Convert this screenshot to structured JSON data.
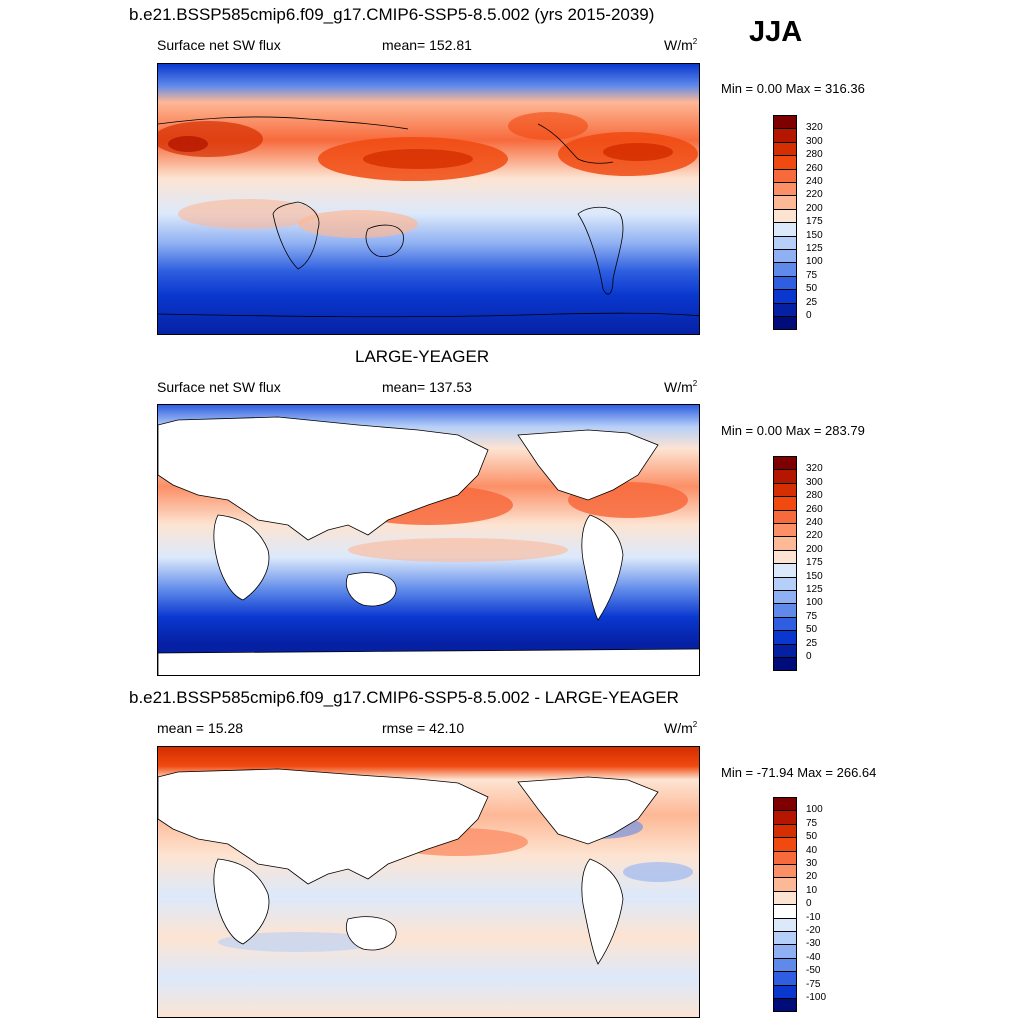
{
  "season": "JJA",
  "panels": [
    {
      "id": "top",
      "title": "b.e21.BSSP585cmip6.f09_g17.CMIP6-SSP5-8.5.002 (yrs 2015-2039)",
      "left_label": "Surface net SW flux",
      "center_label": "mean= 152.81",
      "units_base": "W/m",
      "units_sup": "2",
      "minmax": "Min =   0.00 Max = 316.36",
      "colorbar": {
        "labels": [
          "320",
          "300",
          "280",
          "260",
          "240",
          "220",
          "200",
          "175",
          "150",
          "125",
          "100",
          "75",
          "50",
          "25",
          "0"
        ],
        "colors": [
          "#7f0000",
          "#b41600",
          "#d52e00",
          "#f04a10",
          "#f76a3c",
          "#fb8f66",
          "#fdb896",
          "#fde4d2",
          "#dce9fb",
          "#b6cff8",
          "#8fb0f2",
          "#5f8aea",
          "#2f5fe0",
          "#0a38cf",
          "#0520a3",
          "#000c7a"
        ]
      }
    },
    {
      "id": "middle",
      "title": "LARGE-YEAGER",
      "left_label": "Surface net SW flux",
      "center_label": "mean= 137.53",
      "units_base": "W/m",
      "units_sup": "2",
      "minmax": "Min =   0.00 Max = 283.79",
      "colorbar": {
        "labels": [
          "320",
          "300",
          "280",
          "260",
          "240",
          "220",
          "200",
          "175",
          "150",
          "125",
          "100",
          "75",
          "50",
          "25",
          "0"
        ],
        "colors": [
          "#7f0000",
          "#b41600",
          "#d52e00",
          "#f04a10",
          "#f76a3c",
          "#fb8f66",
          "#fdb896",
          "#fde4d2",
          "#dce9fb",
          "#b6cff8",
          "#8fb0f2",
          "#5f8aea",
          "#2f5fe0",
          "#0a38cf",
          "#0520a3",
          "#000c7a"
        ]
      }
    },
    {
      "id": "bottom",
      "title": "b.e21.BSSP585cmip6.f09_g17.CMIP6-SSP5-8.5.002 - LARGE-YEAGER",
      "left_label": "mean =  15.28",
      "center_label": "rmse =  42.10",
      "units_base": "W/m",
      "units_sup": "2",
      "minmax": "Min = -71.94 Max = 266.64",
      "colorbar": {
        "labels": [
          "100",
          "75",
          "50",
          "40",
          "30",
          "20",
          "10",
          "0",
          "-10",
          "-20",
          "-30",
          "-40",
          "-50",
          "-75",
          "-100"
        ],
        "colors": [
          "#7f0000",
          "#b41600",
          "#d52e00",
          "#f04a10",
          "#f76a3c",
          "#fb8f66",
          "#fdb896",
          "#fde4d2",
          "#ffffff",
          "#dce9fb",
          "#b6cff8",
          "#8fb0f2",
          "#5f8aea",
          "#2f5fe0",
          "#0a38cf",
          "#000c7a"
        ]
      }
    }
  ]
}
